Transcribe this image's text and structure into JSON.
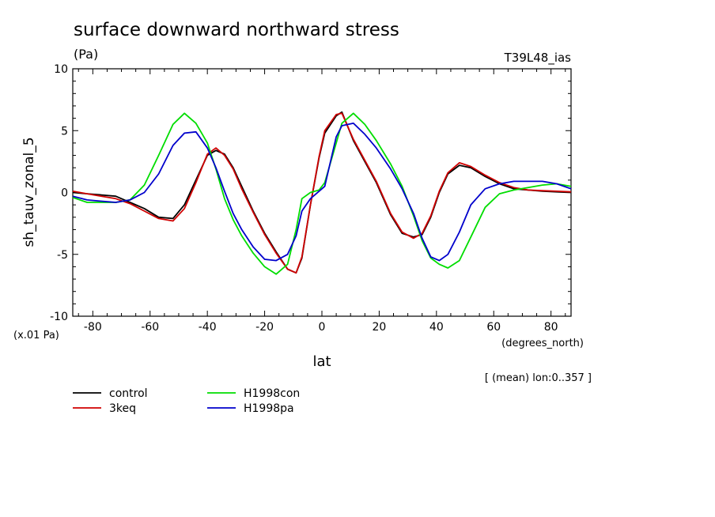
{
  "chart_data": {
    "type": "line",
    "title": "surface downward northward stress",
    "units": "(Pa)",
    "model_label": "T39L48_ias",
    "ylabel": "sh_tauv_zonal_5",
    "yscale_note": "(x.01 Pa)",
    "xlabel": "lat",
    "xunits": "(degrees_north)",
    "footer_note": "[ (mean) lon:0..357 ]",
    "xlim": [
      -87,
      87
    ],
    "ylim": [
      -10,
      10
    ],
    "xticks": [
      -80,
      -60,
      -40,
      -20,
      0,
      20,
      40,
      60,
      80
    ],
    "xtick_labels": [
      "-80",
      "-60",
      "-40",
      "-20",
      "0",
      "20",
      "40",
      "60",
      "80"
    ],
    "yticks": [
      -10,
      -5,
      0,
      5,
      10
    ],
    "ytick_labels": [
      "-10",
      "-5",
      "0",
      "5",
      "10"
    ],
    "x": [
      -87,
      -82,
      -77,
      -72,
      -67,
      -62,
      -57,
      -52,
      -48,
      -44,
      -40,
      -37,
      -34,
      -31,
      -28,
      -24,
      -20,
      -16,
      -12,
      -9,
      -7,
      -4,
      -1,
      1,
      5,
      7,
      11,
      15,
      19,
      24,
      28,
      32,
      35,
      38,
      41,
      44,
      48,
      52,
      57,
      62,
      67,
      72,
      77,
      82,
      87
    ],
    "series": [
      {
        "name": "control",
        "color": "#000000",
        "values": [
          0,
          -0.1,
          -0.2,
          -0.3,
          -0.8,
          -1.3,
          -2.0,
          -2.1,
          -1.0,
          1.0,
          3.0,
          3.4,
          3.1,
          2.0,
          0.5,
          -1.5,
          -3.3,
          -4.8,
          -6.2,
          -6.5,
          -5.3,
          -1.0,
          2.8,
          4.8,
          6.2,
          6.5,
          4.2,
          2.5,
          0.8,
          -1.8,
          -3.3,
          -3.6,
          -3.4,
          -2.0,
          0,
          1.5,
          2.2,
          2.0,
          1.3,
          0.7,
          0.3,
          0.2,
          0.1,
          0.05,
          0
        ]
      },
      {
        "name": "3keq",
        "color": "#d00000",
        "values": [
          0.1,
          -0.1,
          -0.3,
          -0.5,
          -0.9,
          -1.5,
          -2.1,
          -2.3,
          -1.3,
          0.8,
          3.1,
          3.6,
          3.0,
          1.9,
          0.3,
          -1.6,
          -3.4,
          -4.9,
          -6.2,
          -6.5,
          -5.2,
          -1.0,
          2.9,
          5.0,
          6.3,
          6.4,
          4.3,
          2.6,
          0.9,
          -1.7,
          -3.2,
          -3.7,
          -3.3,
          -1.9,
          0.1,
          1.6,
          2.4,
          2.1,
          1.4,
          0.8,
          0.4,
          0.2,
          0.15,
          0.1,
          0.05
        ]
      },
      {
        "name": "H1998con",
        "color": "#00dd00",
        "values": [
          -0.4,
          -0.8,
          -0.8,
          -0.8,
          -0.6,
          0.6,
          3.0,
          5.5,
          6.4,
          5.6,
          4.0,
          1.9,
          -0.5,
          -2.2,
          -3.5,
          -4.9,
          -6.0,
          -6.6,
          -5.8,
          -3.0,
          -0.5,
          0,
          0.2,
          0.8,
          4.0,
          5.6,
          6.4,
          5.5,
          4.2,
          2.3,
          0.5,
          -1.9,
          -3.9,
          -5.3,
          -5.8,
          -6.1,
          -5.5,
          -3.6,
          -1.2,
          -0.1,
          0.2,
          0.4,
          0.6,
          0.7,
          0.5
        ]
      },
      {
        "name": "H1998pa",
        "color": "#0000cc",
        "values": [
          -0.3,
          -0.6,
          -0.7,
          -0.8,
          -0.6,
          0.0,
          1.5,
          3.8,
          4.8,
          4.9,
          3.6,
          2.0,
          0.1,
          -1.7,
          -3.0,
          -4.4,
          -5.4,
          -5.5,
          -5.0,
          -3.5,
          -1.5,
          -0.5,
          0.1,
          0.5,
          4.5,
          5.4,
          5.6,
          4.7,
          3.6,
          1.9,
          0.3,
          -1.7,
          -3.7,
          -5.2,
          -5.5,
          -5.0,
          -3.2,
          -1.0,
          0.3,
          0.7,
          0.9,
          0.9,
          0.9,
          0.7,
          0.3
        ]
      }
    ]
  }
}
